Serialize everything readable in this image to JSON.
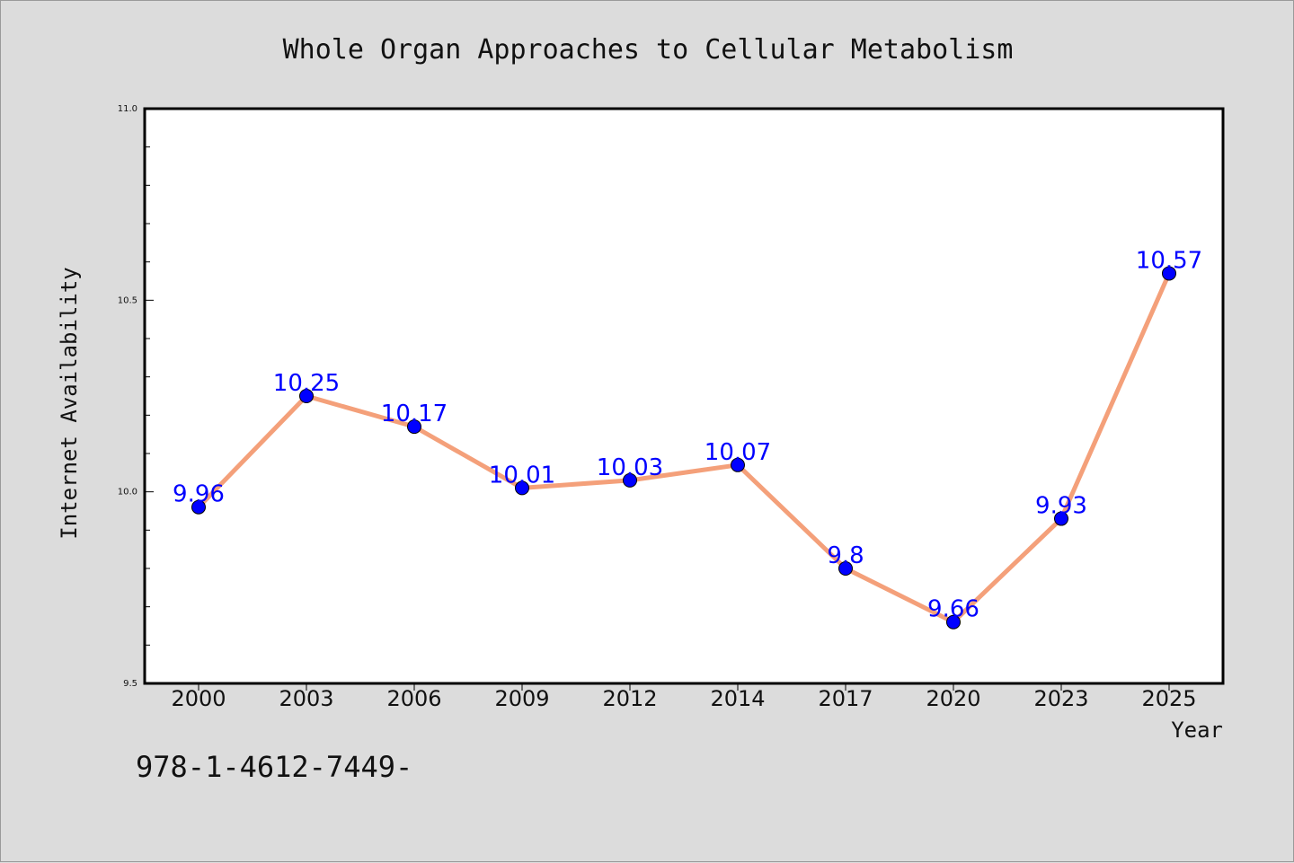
{
  "chart_data": {
    "type": "line",
    "title": "Whole Organ Approaches to Cellular Metabolism",
    "xlabel": "Year",
    "ylabel": "Internet Availability",
    "categories": [
      "2000",
      "2003",
      "2006",
      "2009",
      "2012",
      "2014",
      "2017",
      "2020",
      "2023",
      "2025"
    ],
    "series": [
      {
        "values": [
          9.96,
          10.25,
          10.17,
          10.01,
          10.03,
          10.07,
          9.8,
          9.66,
          9.93,
          10.57
        ],
        "labels": [
          "9.96",
          "10.25",
          "10.17",
          "10.01",
          "10.03",
          "10.07",
          "9.8",
          "9.66",
          "9.93",
          "10.57"
        ],
        "line_color": "#f4a07a",
        "marker_color": "#0000ff"
      }
    ],
    "ylim": [
      9.5,
      11.0
    ],
    "yticks": [
      "9.5",
      "10.0",
      "10.5",
      "11.0"
    ],
    "grid": false,
    "legend": "none"
  },
  "footer": {
    "text": "978-1-4612-7449-"
  }
}
